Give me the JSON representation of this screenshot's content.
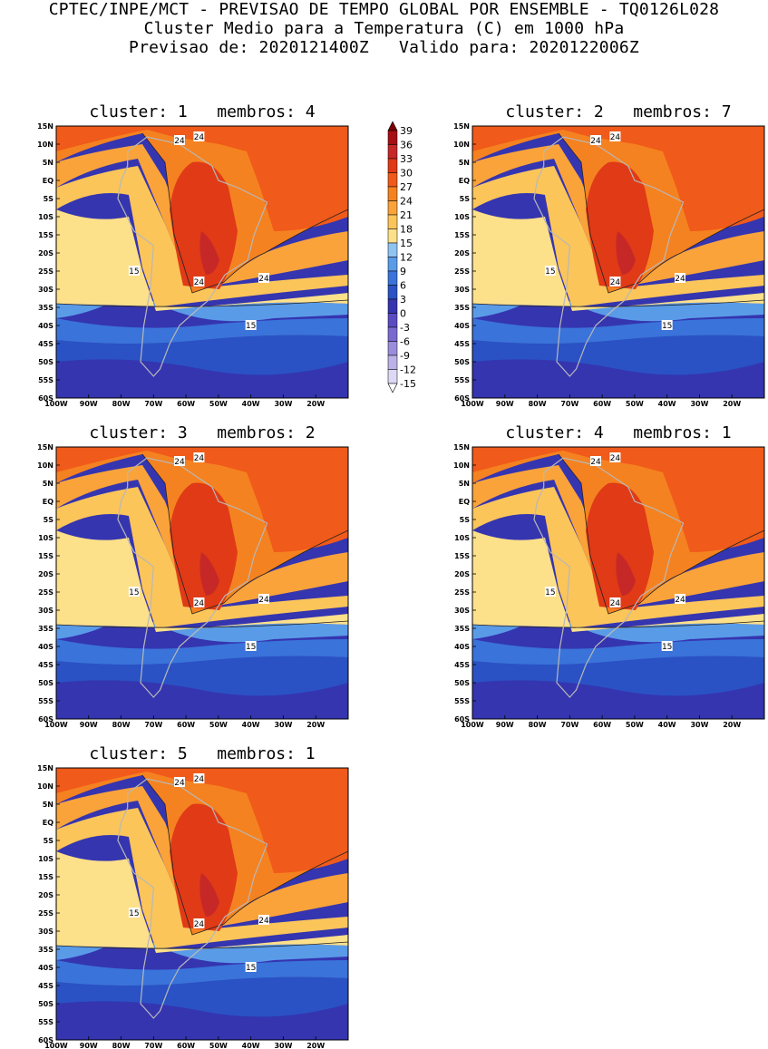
{
  "header": {
    "line1": "CPTEC/INPE/MCT - PREVISAO DE TEMPO GLOBAL POR ENSEMBLE - TQ0126L028",
    "line2": "Cluster Medio para a Temperatura (C) em 1000 hPa",
    "line3": "Previsao de: 2020121400Z   Valido para: 2020122006Z"
  },
  "panels": [
    {
      "title": "cluster: 1   membros: 4"
    },
    {
      "title": "cluster: 2   membros: 7"
    },
    {
      "title": "cluster: 3   membros: 2"
    },
    {
      "title": "cluster: 4   membros: 1"
    },
    {
      "title": "cluster: 5   membros: 1"
    }
  ],
  "axes": {
    "lat_labels": [
      "15N",
      "10N",
      "5N",
      "EQ",
      "5S",
      "10S",
      "15S",
      "20S",
      "25S",
      "30S",
      "35S",
      "40S",
      "45S",
      "50S",
      "55S",
      "60S"
    ],
    "lon_labels": [
      "100W",
      "90W",
      "80W",
      "70W",
      "60W",
      "50W",
      "40W",
      "30W",
      "20W"
    ]
  },
  "contour_labels": [
    "24",
    "24",
    "15",
    "24",
    "24",
    "15"
  ],
  "colorbar": {
    "labels": [
      "39",
      "36",
      "33",
      "30",
      "27",
      "24",
      "21",
      "18",
      "15",
      "12",
      "9",
      "6",
      "3",
      "0",
      "-3",
      "-6",
      "-9",
      "-12",
      "-15"
    ],
    "colors": [
      "#7a0000",
      "#a50f15",
      "#c62828",
      "#e03a17",
      "#f05a1a",
      "#f58220",
      "#f9a33a",
      "#fbc55a",
      "#fde08a",
      "#8fc3f2",
      "#5a9be8",
      "#3a73d9",
      "#2a52c4",
      "#3535b0",
      "#5a4bc2",
      "#7a6ad0",
      "#9a8ddc",
      "#bcb2e8",
      "#ddd8f4"
    ]
  }
}
